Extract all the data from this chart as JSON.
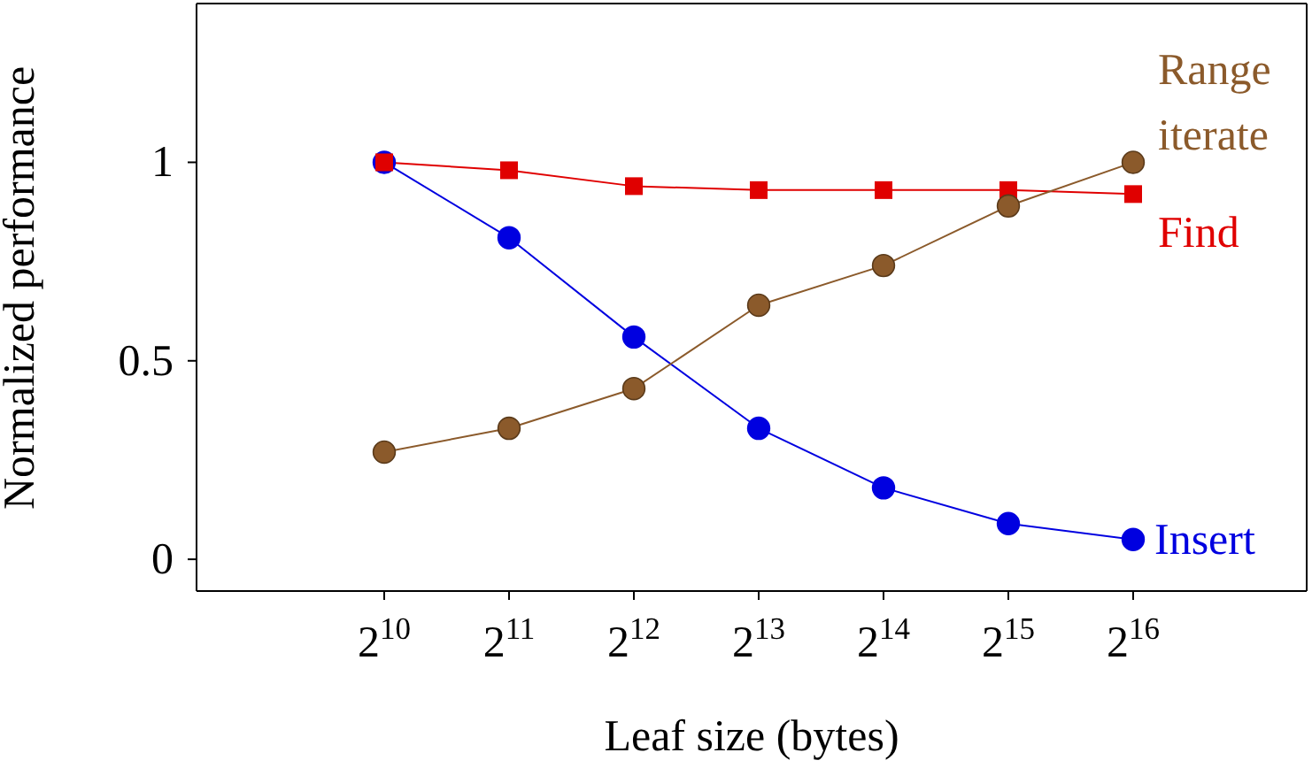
{
  "chart_data": {
    "type": "line",
    "xlabel": "Leaf size (bytes)",
    "ylabel": "Normalized performance",
    "categories": [
      "2$^{10}$",
      "2$^{11}$",
      "2$^{12}$",
      "2$^{13}$",
      "2$^{14}$",
      "2$^{15}$",
      "2$^{16}$"
    ],
    "series": [
      {
        "name": "Range iterate",
        "color": "#8b5a2b",
        "marker": "circle",
        "values": [
          0.27,
          0.33,
          0.43,
          0.64,
          0.74,
          0.89,
          1.0
        ]
      },
      {
        "name": "Find",
        "color": "#e00000",
        "marker": "square",
        "values": [
          1.0,
          0.98,
          0.94,
          0.93,
          0.93,
          0.93,
          0.92
        ]
      },
      {
        "name": "Insert",
        "color": "#0000e0",
        "marker": "circle",
        "values": [
          1.0,
          0.81,
          0.56,
          0.33,
          0.18,
          0.09,
          0.05
        ]
      }
    ],
    "ylim": [
      -0.08,
      1.4
    ],
    "yticks": [
      0,
      0.5,
      1
    ],
    "grid": false,
    "legend": false
  }
}
